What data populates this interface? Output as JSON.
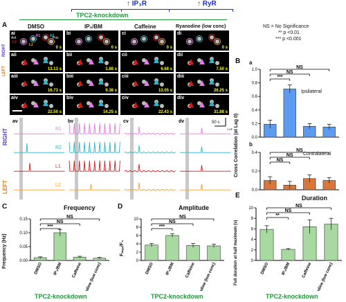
{
  "header": {
    "ip3r_label": "↑ IP₃R",
    "ryr_label": "↑ RyR",
    "main_title": "TPC2-knockdown"
  },
  "legend_box": {
    "ns": "NS = No Significance",
    "p01": "** p <0.01",
    "p001": "*** p <0.001"
  },
  "panelA": {
    "letter": "A",
    "columns": [
      "DMSO",
      "IP₃/BM",
      "Caffeine",
      "Ryanodine (low conc)"
    ],
    "side_right": "RIGHT",
    "side_left": "LEFT",
    "ant": "Ant",
    "pos": "Pos",
    "roi": [
      "R1",
      "R2",
      "L1",
      "L2"
    ],
    "tiles": [
      [
        "ai",
        "bi",
        "ci",
        "di"
      ],
      [
        "aii",
        "bii",
        "cii",
        "dii"
      ],
      [
        "aiii",
        "biii",
        "ciii",
        "diii"
      ],
      [
        "aiv",
        "biv",
        "civ",
        "div"
      ]
    ],
    "times": [
      [
        "0 s",
        "0 s",
        "0 s",
        "0 s"
      ],
      [
        "13.13 s",
        "1.88 s",
        "6.68 s",
        "7.50 s"
      ],
      [
        "16.73 s",
        "9.38 s",
        "13.05 s",
        "26.25 s"
      ],
      [
        "22.50 s",
        "14.25 s",
        "22.43 s",
        "31.88 s"
      ]
    ],
    "trace_cols": [
      "av",
      "bv",
      "cv",
      "dv"
    ],
    "trace_labels": [
      "R1",
      "R2",
      "L1",
      "L2"
    ],
    "scale_time": "50 s",
    "scale_amp": "1 ΔF/F₀",
    "trace_colors": [
      "#e879e8",
      "#2ab7c9",
      "#d11a1a",
      "#f0a030"
    ]
  },
  "panelB": {
    "letter": "B",
    "ylabel": "Cross Correlation (at Lag 0)",
    "sub_a": "a",
    "sub_b": "b",
    "ipsi": "Ipsilateral",
    "contra": "Contralateral",
    "sig": [
      "***",
      "NS",
      "NS",
      "NS",
      "NS",
      "NS"
    ]
  },
  "panelC": {
    "letter": "C",
    "title": "Frequency",
    "ylabel": "Frequency (Hz)",
    "footer": "TPC2-knockdown",
    "sig": [
      "***",
      "NS",
      "NS"
    ]
  },
  "panelD": {
    "letter": "D",
    "title": "Amplitude",
    "ylabel": "Fₘₐₓ/F₀",
    "footer": "TPC2-knockdown",
    "sig": [
      "***",
      "NS",
      "NS"
    ]
  },
  "panelE": {
    "letter": "E",
    "title": "Duration",
    "ylabel": "Full duration at half maximum (s)",
    "footer": "TPC2-knockdown",
    "sig": [
      "**",
      "NS",
      "NS"
    ]
  },
  "chart_data": [
    {
      "type": "bar",
      "panel": "Ba",
      "categories": [
        "DMSO",
        "IP₃/BM",
        "Caffeine",
        "Ryanodine (low conc)"
      ],
      "values": [
        0.19,
        0.71,
        0.16,
        0.15
      ],
      "errors": [
        0.06,
        0.06,
        0.04,
        0.04
      ],
      "ylim": [
        0,
        1.0
      ],
      "yticks": [
        "0.0",
        "0.2",
        "0.4",
        "0.6",
        "0.8",
        "1.0"
      ],
      "color": "#5b9bf0"
    },
    {
      "type": "bar",
      "panel": "Bb",
      "categories": [
        "DMSO",
        "IP₃/BM",
        "Caffeine",
        "Ryanodine (low conc)"
      ],
      "values": [
        0.1,
        0.05,
        0.12,
        0.1
      ],
      "errors": [
        0.04,
        0.04,
        0.04,
        0.03
      ],
      "ylim": [
        0,
        0.4
      ],
      "yticks": [
        "0.0",
        "0.2",
        "0.4"
      ],
      "color": "#d9763b"
    },
    {
      "type": "bar",
      "panel": "C",
      "categories": [
        "DMSO",
        "IP₃/BM",
        "Caffeine",
        "Ryanodine (low conc)"
      ],
      "values": [
        0.01,
        0.1,
        0.012,
        0.008
      ],
      "errors": [
        0.003,
        0.012,
        0.003,
        0.003
      ],
      "ylim": [
        0,
        0.15
      ],
      "yticks": [
        "0.00",
        "0.05",
        "0.10",
        "0.15"
      ],
      "color": "#a8d9a0"
    },
    {
      "type": "bar",
      "panel": "D",
      "categories": [
        "DMSO",
        "IP₃/BM",
        "Caffeine",
        "Ryanodine (low conc)"
      ],
      "values": [
        3.7,
        6.0,
        3.6,
        3.5
      ],
      "errors": [
        0.4,
        0.4,
        0.5,
        0.4
      ],
      "ylim": [
        0,
        10
      ],
      "yticks": [
        "0",
        "2",
        "4",
        "6",
        "8",
        "10"
      ],
      "color": "#a8d9a0"
    },
    {
      "type": "bar",
      "panel": "E",
      "categories": [
        "DMSO",
        "IP₃/BM",
        "Caffeine",
        "Ryanodine (low conc)"
      ],
      "values": [
        5.9,
        2.1,
        6.4,
        6.9
      ],
      "errors": [
        0.7,
        0.15,
        1.3,
        1.1
      ],
      "ylim": [
        0,
        10
      ],
      "yticks": [
        "0",
        "2",
        "4",
        "6",
        "8",
        "10"
      ],
      "color": "#a8d9a0"
    }
  ]
}
